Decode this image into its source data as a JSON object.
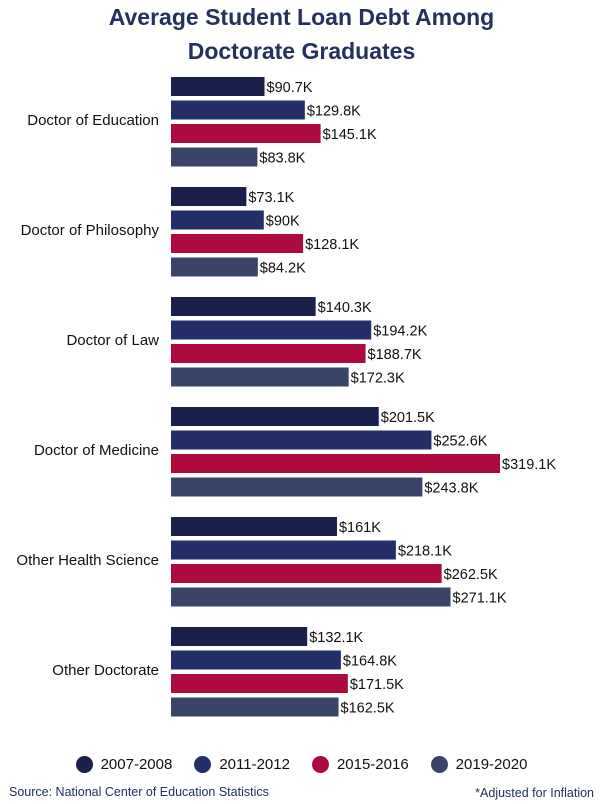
{
  "chart_data": {
    "type": "bar",
    "orientation": "horizontal",
    "title_line1": "Average Student Loan Debt Among",
    "title_line2": "Doctorate Graduates",
    "categories": [
      "Doctor of Education",
      "Doctor of Philosophy",
      "Doctor of Law",
      "Doctor of Medicine",
      "Other Health Science",
      "Other Doctorate"
    ],
    "series": [
      {
        "name": "2007-2008",
        "color": "#1a1f4b",
        "values": [
          90.7,
          73.1,
          140.3,
          201.5,
          161,
          132.1
        ],
        "labels": [
          "$90.7K",
          "$73.1K",
          "$140.3K",
          "$201.5K",
          "$161K",
          "$132.1K"
        ]
      },
      {
        "name": "2011-2012",
        "color": "#232f66",
        "values": [
          129.8,
          90,
          194.2,
          252.6,
          218.1,
          164.8
        ],
        "labels": [
          "$129.8K",
          "$90K",
          "$194.2K",
          "$252.6K",
          "$218.1K",
          "$164.8K"
        ]
      },
      {
        "name": "2015-2016",
        "color": "#ad0a3f",
        "values": [
          145.1,
          128.1,
          188.7,
          319.1,
          262.5,
          171.5
        ],
        "labels": [
          "$145.1K",
          "$128.1K",
          "$188.7K",
          "$319.1K",
          "$262.5K",
          "$171.5K"
        ]
      },
      {
        "name": "2019-2020",
        "color": "#3a4469",
        "values": [
          83.8,
          84.2,
          172.3,
          243.8,
          271.1,
          162.5
        ],
        "labels": [
          "$83.8K",
          "$84.2K",
          "$172.3K",
          "$243.8K",
          "$271.1K",
          "$162.5K"
        ]
      }
    ],
    "legend_position": "bottom",
    "grid": false
  },
  "source": "Source: National Center of Education Statistics",
  "note": "*Adjusted for Inflation"
}
